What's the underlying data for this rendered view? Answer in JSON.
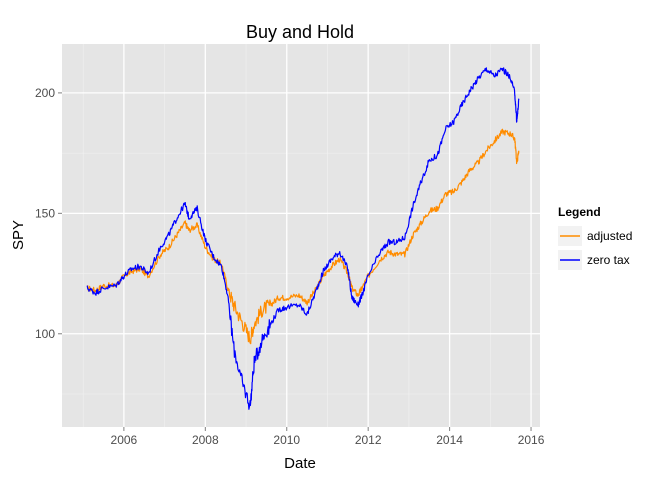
{
  "chart_data": {
    "type": "line",
    "title": "Buy and Hold",
    "xlabel": "Date",
    "ylabel": "SPY",
    "x_ticks": [
      2006,
      2008,
      2010,
      2012,
      2014,
      2016
    ],
    "y_ticks": [
      100,
      150,
      200
    ],
    "xlim": [
      2004.48,
      2016.22
    ],
    "ylim": [
      61.3,
      220.3
    ],
    "grid": true,
    "legend": {
      "title": "Legend",
      "position": "right"
    },
    "series": [
      {
        "name": "adjusted",
        "color": "#FF8C00",
        "x": [
          2005.1,
          2005.3,
          2005.5,
          2005.8,
          2006.0,
          2006.2,
          2006.4,
          2006.6,
          2006.9,
          2007.1,
          2007.3,
          2007.5,
          2007.6,
          2007.8,
          2008.0,
          2008.2,
          2008.4,
          2008.55,
          2008.7,
          2008.9,
          2009.1,
          2009.2,
          2009.4,
          2009.6,
          2009.8,
          2010.0,
          2010.3,
          2010.5,
          2010.7,
          2010.9,
          2011.1,
          2011.3,
          2011.5,
          2011.6,
          2011.75,
          2011.85,
          2012.0,
          2012.3,
          2012.5,
          2012.7,
          2012.9,
          2013.1,
          2013.3,
          2013.5,
          2013.7,
          2013.9,
          2014.1,
          2014.3,
          2014.5,
          2014.7,
          2014.9,
          2015.1,
          2015.3,
          2015.5,
          2015.6,
          2015.65,
          2015.7
        ],
        "y": [
          119,
          118,
          120,
          120,
          124,
          126,
          127,
          124,
          133,
          136,
          141,
          146,
          143,
          145,
          136,
          131,
          129,
          119,
          112,
          105,
          98,
          104,
          110,
          112,
          115,
          115,
          116,
          113,
          118,
          124,
          128,
          131,
          125,
          119,
          116,
          119,
          124,
          131,
          134,
          133,
          133,
          141,
          146,
          151,
          152,
          158,
          159,
          163,
          168,
          171,
          176,
          180,
          184,
          183,
          181,
          171,
          176
        ]
      },
      {
        "name": "zero tax",
        "color": "#0000FF",
        "x": [
          2005.1,
          2005.3,
          2005.5,
          2005.8,
          2006.0,
          2006.2,
          2006.4,
          2006.6,
          2006.9,
          2007.1,
          2007.3,
          2007.5,
          2007.6,
          2007.8,
          2008.0,
          2008.2,
          2008.4,
          2008.55,
          2008.7,
          2008.9,
          2009.1,
          2009.2,
          2009.4,
          2009.6,
          2009.8,
          2010.0,
          2010.3,
          2010.5,
          2010.7,
          2010.9,
          2011.1,
          2011.3,
          2011.5,
          2011.6,
          2011.75,
          2011.85,
          2012.0,
          2012.3,
          2012.5,
          2012.7,
          2012.9,
          2013.1,
          2013.3,
          2013.5,
          2013.7,
          2013.9,
          2014.1,
          2014.3,
          2014.5,
          2014.7,
          2014.9,
          2015.1,
          2015.3,
          2015.5,
          2015.6,
          2015.65,
          2015.7
        ],
        "y": [
          119,
          117,
          119,
          120,
          124,
          127,
          128,
          125,
          136,
          141,
          148,
          154,
          148,
          152,
          139,
          132,
          128,
          116,
          94,
          80,
          70,
          88,
          98,
          104,
          110,
          111,
          112,
          108,
          117,
          126,
          131,
          134,
          127,
          115,
          112,
          116,
          124,
          134,
          138,
          138,
          140,
          153,
          163,
          172,
          174,
          185,
          188,
          195,
          201,
          206,
          210,
          207,
          210,
          206,
          200,
          188,
          197
        ]
      }
    ]
  }
}
